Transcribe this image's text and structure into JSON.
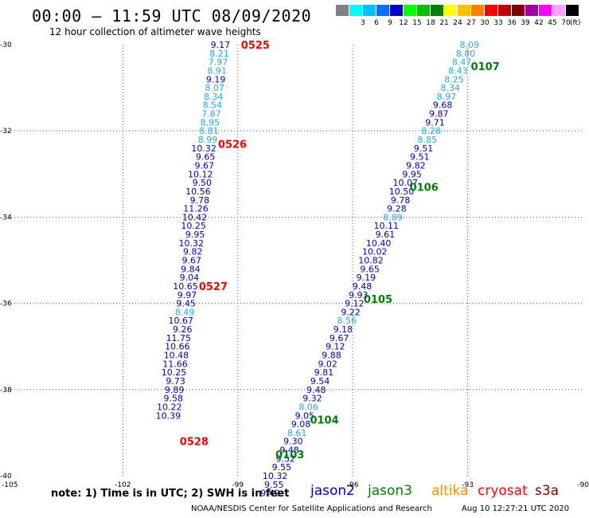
{
  "header": {
    "title": "00:00 – 11:59 UTC 08/09/2020",
    "subtitle": "12 hour collection of altimeter wave heights"
  },
  "legend": {
    "swatches": [
      {
        "color": "#808080",
        "label": ""
      },
      {
        "color": "#00ffff",
        "label": "3"
      },
      {
        "color": "#00c0ff",
        "label": "6"
      },
      {
        "color": "#0070ff",
        "label": "9"
      },
      {
        "color": "#0000c8",
        "label": "12"
      },
      {
        "color": "#00ff00",
        "label": "15"
      },
      {
        "color": "#00c000",
        "label": "18"
      },
      {
        "color": "#008000",
        "label": "21"
      },
      {
        "color": "#ffff00",
        "label": "24"
      },
      {
        "color": "#ffc000",
        "label": "27"
      },
      {
        "color": "#ff8000",
        "label": "30"
      },
      {
        "color": "#ff0000",
        "label": "33"
      },
      {
        "color": "#c00000",
        "label": "36"
      },
      {
        "color": "#800000",
        "label": "39"
      },
      {
        "color": "#a000a0",
        "label": "42"
      },
      {
        "color": "#ff00ff",
        "label": "45"
      },
      {
        "color": "#ffa0ff",
        "label": "70"
      },
      {
        "color": "#000000",
        "label": ""
      }
    ],
    "unit": "(ft)"
  },
  "notes": {
    "text": "note:  1) Time is in UTC; 2) SWH is in feet"
  },
  "satellites": [
    {
      "name": "jason2",
      "color": "#0000cc"
    },
    {
      "name": "jason3",
      "color": "#008000"
    },
    {
      "name": "altika",
      "color": "#ff8c00"
    },
    {
      "name": "cryosat",
      "color": "#ff0000"
    },
    {
      "name": "s3a",
      "color": "#800000"
    }
  ],
  "footer": {
    "credit": "NOAA/NESDIS Center for Satellite Applications and Research",
    "timestamp": "Aug 10 12:27:21 UTC 2020"
  },
  "chart_data": {
    "type": "scatter",
    "title": "00:00 – 11:59 UTC 08/09/2020",
    "xlabel": "",
    "ylabel": "",
    "xlim": [
      -105,
      -90
    ],
    "ylim": [
      -40,
      -30
    ],
    "grid": true,
    "x_ticks": [
      -105,
      -102,
      -99,
      -96,
      -93,
      -90
    ],
    "y_ticks": [
      -30,
      -32,
      -34,
      -36,
      -38,
      -40
    ],
    "value_colors": {
      "light": "#22aadd",
      "dark": "#0000bb"
    },
    "series": [
      {
        "name": "cryosat",
        "color": "#ff0000",
        "time_labels": [
          {
            "text": "0525",
            "lon": -99.0,
            "lat": -30.0
          },
          {
            "text": "0526",
            "lon": -99.6,
            "lat": -32.3
          },
          {
            "text": "0527",
            "lon": -100.1,
            "lat": -35.6
          },
          {
            "text": "0528",
            "lon": -100.6,
            "lat": -39.2
          }
        ],
        "points": [
          {
            "lon": -99.2,
            "lat": -30.0,
            "swh": "9.17",
            "c": "dark"
          },
          {
            "lon": -99.23,
            "lat": -30.2,
            "swh": "8.21",
            "c": "light"
          },
          {
            "lon": -99.26,
            "lat": -30.4,
            "swh": "7.97",
            "c": "light"
          },
          {
            "lon": -99.29,
            "lat": -30.6,
            "swh": "8.91",
            "c": "light"
          },
          {
            "lon": -99.32,
            "lat": -30.8,
            "swh": "9.19",
            "c": "dark"
          },
          {
            "lon": -99.35,
            "lat": -31.0,
            "swh": "8.07",
            "c": "light"
          },
          {
            "lon": -99.38,
            "lat": -31.2,
            "swh": "8.34",
            "c": "light"
          },
          {
            "lon": -99.41,
            "lat": -31.4,
            "swh": "8.54",
            "c": "light"
          },
          {
            "lon": -99.44,
            "lat": -31.6,
            "swh": "7.87",
            "c": "light"
          },
          {
            "lon": -99.47,
            "lat": -31.8,
            "swh": "8.95",
            "c": "light"
          },
          {
            "lon": -99.5,
            "lat": -32.0,
            "swh": "8.81",
            "c": "light"
          },
          {
            "lon": -99.53,
            "lat": -32.2,
            "swh": "8.99",
            "c": "light"
          },
          {
            "lon": -99.56,
            "lat": -32.4,
            "swh": "10.32",
            "c": "dark"
          },
          {
            "lon": -99.59,
            "lat": -32.6,
            "swh": "9.65",
            "c": "dark"
          },
          {
            "lon": -99.62,
            "lat": -32.8,
            "swh": "9.67",
            "c": "dark"
          },
          {
            "lon": -99.65,
            "lat": -33.0,
            "swh": "10.12",
            "c": "dark"
          },
          {
            "lon": -99.68,
            "lat": -33.2,
            "swh": "9.50",
            "c": "dark"
          },
          {
            "lon": -99.71,
            "lat": -33.4,
            "swh": "10.56",
            "c": "dark"
          },
          {
            "lon": -99.74,
            "lat": -33.6,
            "swh": "9.78",
            "c": "dark"
          },
          {
            "lon": -99.77,
            "lat": -33.8,
            "swh": "11.26",
            "c": "dark"
          },
          {
            "lon": -99.8,
            "lat": -34.0,
            "swh": "10.42",
            "c": "dark"
          },
          {
            "lon": -99.83,
            "lat": -34.2,
            "swh": "10.25",
            "c": "dark"
          },
          {
            "lon": -99.86,
            "lat": -34.4,
            "swh": "9.95",
            "c": "dark"
          },
          {
            "lon": -99.89,
            "lat": -34.6,
            "swh": "10.32",
            "c": "dark"
          },
          {
            "lon": -99.92,
            "lat": -34.8,
            "swh": "9.82",
            "c": "dark"
          },
          {
            "lon": -99.95,
            "lat": -35.0,
            "swh": "9.67",
            "c": "dark"
          },
          {
            "lon": -99.98,
            "lat": -35.2,
            "swh": "9.84",
            "c": "dark"
          },
          {
            "lon": -100.01,
            "lat": -35.4,
            "swh": "9.04",
            "c": "dark"
          },
          {
            "lon": -100.04,
            "lat": -35.6,
            "swh": "10.65",
            "c": "dark"
          },
          {
            "lon": -100.07,
            "lat": -35.8,
            "swh": "9.97",
            "c": "dark"
          },
          {
            "lon": -100.1,
            "lat": -36.0,
            "swh": "9.45",
            "c": "dark"
          },
          {
            "lon": -100.13,
            "lat": -36.2,
            "swh": "8.49",
            "c": "light"
          },
          {
            "lon": -100.16,
            "lat": -36.4,
            "swh": "10.67",
            "c": "dark"
          },
          {
            "lon": -100.19,
            "lat": -36.6,
            "swh": "9.26",
            "c": "dark"
          },
          {
            "lon": -100.22,
            "lat": -36.8,
            "swh": "11.75",
            "c": "dark"
          },
          {
            "lon": -100.25,
            "lat": -37.0,
            "swh": "10.66",
            "c": "dark"
          },
          {
            "lon": -100.28,
            "lat": -37.2,
            "swh": "10.48",
            "c": "dark"
          },
          {
            "lon": -100.31,
            "lat": -37.4,
            "swh": "11.66",
            "c": "dark"
          },
          {
            "lon": -100.34,
            "lat": -37.6,
            "swh": "10.25",
            "c": "dark"
          },
          {
            "lon": -100.37,
            "lat": -37.8,
            "swh": "9.73",
            "c": "dark"
          },
          {
            "lon": -100.4,
            "lat": -38.0,
            "swh": "9.89",
            "c": "dark"
          },
          {
            "lon": -100.43,
            "lat": -38.2,
            "swh": "9.58",
            "c": "dark"
          },
          {
            "lon": -100.46,
            "lat": -38.4,
            "swh": "10.22",
            "c": "dark"
          },
          {
            "lon": -100.49,
            "lat": -38.6,
            "swh": "10.39",
            "c": "dark"
          }
        ]
      },
      {
        "name": "jason3",
        "color": "#008000",
        "time_labels": [
          {
            "text": "0107",
            "lon": -93.0,
            "lat": -30.5
          },
          {
            "text": "0106",
            "lon": -94.6,
            "lat": -33.3
          },
          {
            "text": "0105",
            "lon": -95.8,
            "lat": -35.9
          },
          {
            "text": "0104",
            "lon": -97.2,
            "lat": -38.7
          },
          {
            "text": "0103",
            "lon": -98.1,
            "lat": -39.5
          }
        ],
        "points": [
          {
            "lon": -92.7,
            "lat": -30.0,
            "swh": "8.09",
            "c": "light"
          },
          {
            "lon": -92.8,
            "lat": -30.2,
            "swh": "8.80",
            "c": "light"
          },
          {
            "lon": -92.9,
            "lat": -30.4,
            "swh": "8.47",
            "c": "light"
          },
          {
            "lon": -93.0,
            "lat": -30.6,
            "swh": "8.43",
            "c": "light"
          },
          {
            "lon": -93.1,
            "lat": -30.8,
            "swh": "8.25",
            "c": "light"
          },
          {
            "lon": -93.2,
            "lat": -31.0,
            "swh": "8.34",
            "c": "light"
          },
          {
            "lon": -93.3,
            "lat": -31.2,
            "swh": "8.97",
            "c": "light"
          },
          {
            "lon": -93.4,
            "lat": -31.4,
            "swh": "9.68",
            "c": "dark"
          },
          {
            "lon": -93.5,
            "lat": -31.6,
            "swh": "9.87",
            "c": "dark"
          },
          {
            "lon": -93.6,
            "lat": -31.8,
            "swh": "9.71",
            "c": "dark"
          },
          {
            "lon": -93.7,
            "lat": -32.0,
            "swh": "8.28",
            "c": "light"
          },
          {
            "lon": -93.8,
            "lat": -32.2,
            "swh": "8.85",
            "c": "light"
          },
          {
            "lon": -93.9,
            "lat": -32.4,
            "swh": "9.51",
            "c": "dark"
          },
          {
            "lon": -94.0,
            "lat": -32.6,
            "swh": "9.51",
            "c": "dark"
          },
          {
            "lon": -94.1,
            "lat": -32.8,
            "swh": "9.82",
            "c": "dark"
          },
          {
            "lon": -94.2,
            "lat": -33.0,
            "swh": "9.95",
            "c": "dark"
          },
          {
            "lon": -94.3,
            "lat": -33.2,
            "swh": "10.07",
            "c": "dark"
          },
          {
            "lon": -94.4,
            "lat": -33.4,
            "swh": "10.50",
            "c": "dark"
          },
          {
            "lon": -94.5,
            "lat": -33.6,
            "swh": "9.78",
            "c": "dark"
          },
          {
            "lon": -94.6,
            "lat": -33.8,
            "swh": "9.28",
            "c": "dark"
          },
          {
            "lon": -94.7,
            "lat": -34.0,
            "swh": "8.89",
            "c": "light"
          },
          {
            "lon": -94.8,
            "lat": -34.2,
            "swh": "10.11",
            "c": "dark"
          },
          {
            "lon": -94.9,
            "lat": -34.4,
            "swh": "9.61",
            "c": "dark"
          },
          {
            "lon": -95.0,
            "lat": -34.6,
            "swh": "10.40",
            "c": "dark"
          },
          {
            "lon": -95.1,
            "lat": -34.8,
            "swh": "10.02",
            "c": "dark"
          },
          {
            "lon": -95.2,
            "lat": -35.0,
            "swh": "10.82",
            "c": "dark"
          },
          {
            "lon": -95.3,
            "lat": -35.2,
            "swh": "9.65",
            "c": "dark"
          },
          {
            "lon": -95.4,
            "lat": -35.4,
            "swh": "9.19",
            "c": "dark"
          },
          {
            "lon": -95.5,
            "lat": -35.6,
            "swh": "9.48",
            "c": "dark"
          },
          {
            "lon": -95.6,
            "lat": -35.8,
            "swh": "9.93",
            "c": "dark"
          },
          {
            "lon": -95.7,
            "lat": -36.0,
            "swh": "9.12",
            "c": "dark"
          },
          {
            "lon": -95.8,
            "lat": -36.2,
            "swh": "9.22",
            "c": "dark"
          },
          {
            "lon": -95.9,
            "lat": -36.4,
            "swh": "8.56",
            "c": "light"
          },
          {
            "lon": -96.0,
            "lat": -36.6,
            "swh": "9.18",
            "c": "dark"
          },
          {
            "lon": -96.1,
            "lat": -36.8,
            "swh": "9.67",
            "c": "dark"
          },
          {
            "lon": -96.2,
            "lat": -37.0,
            "swh": "9.12",
            "c": "dark"
          },
          {
            "lon": -96.3,
            "lat": -37.2,
            "swh": "9.88",
            "c": "dark"
          },
          {
            "lon": -96.4,
            "lat": -37.4,
            "swh": "9.02",
            "c": "dark"
          },
          {
            "lon": -96.5,
            "lat": -37.6,
            "swh": "9.81",
            "c": "dark"
          },
          {
            "lon": -96.6,
            "lat": -37.8,
            "swh": "9.54",
            "c": "dark"
          },
          {
            "lon": -96.7,
            "lat": -38.0,
            "swh": "9.48",
            "c": "dark"
          },
          {
            "lon": -96.8,
            "lat": -38.2,
            "swh": "9.32",
            "c": "dark"
          },
          {
            "lon": -96.9,
            "lat": -38.4,
            "swh": "8.06",
            "c": "light"
          },
          {
            "lon": -97.0,
            "lat": -38.6,
            "swh": "9.05",
            "c": "dark"
          },
          {
            "lon": -97.1,
            "lat": -38.8,
            "swh": "9.08",
            "c": "dark"
          },
          {
            "lon": -97.2,
            "lat": -39.0,
            "swh": "8.61",
            "c": "light"
          },
          {
            "lon": -97.3,
            "lat": -39.2,
            "swh": "9.30",
            "c": "dark"
          },
          {
            "lon": -97.4,
            "lat": -39.4,
            "swh": "9.48",
            "c": "dark"
          },
          {
            "lon": -97.5,
            "lat": -39.6,
            "swh": "9.52",
            "c": "dark"
          },
          {
            "lon": -97.6,
            "lat": -39.8,
            "swh": "9.55",
            "c": "dark"
          },
          {
            "lon": -97.7,
            "lat": -40.0,
            "swh": "10.32",
            "c": "dark"
          },
          {
            "lon": -97.8,
            "lat": -40.2,
            "swh": "9.55",
            "c": "dark"
          },
          {
            "lon": -97.9,
            "lat": -40.4,
            "swh": "9.42",
            "c": "dark"
          }
        ]
      }
    ]
  }
}
